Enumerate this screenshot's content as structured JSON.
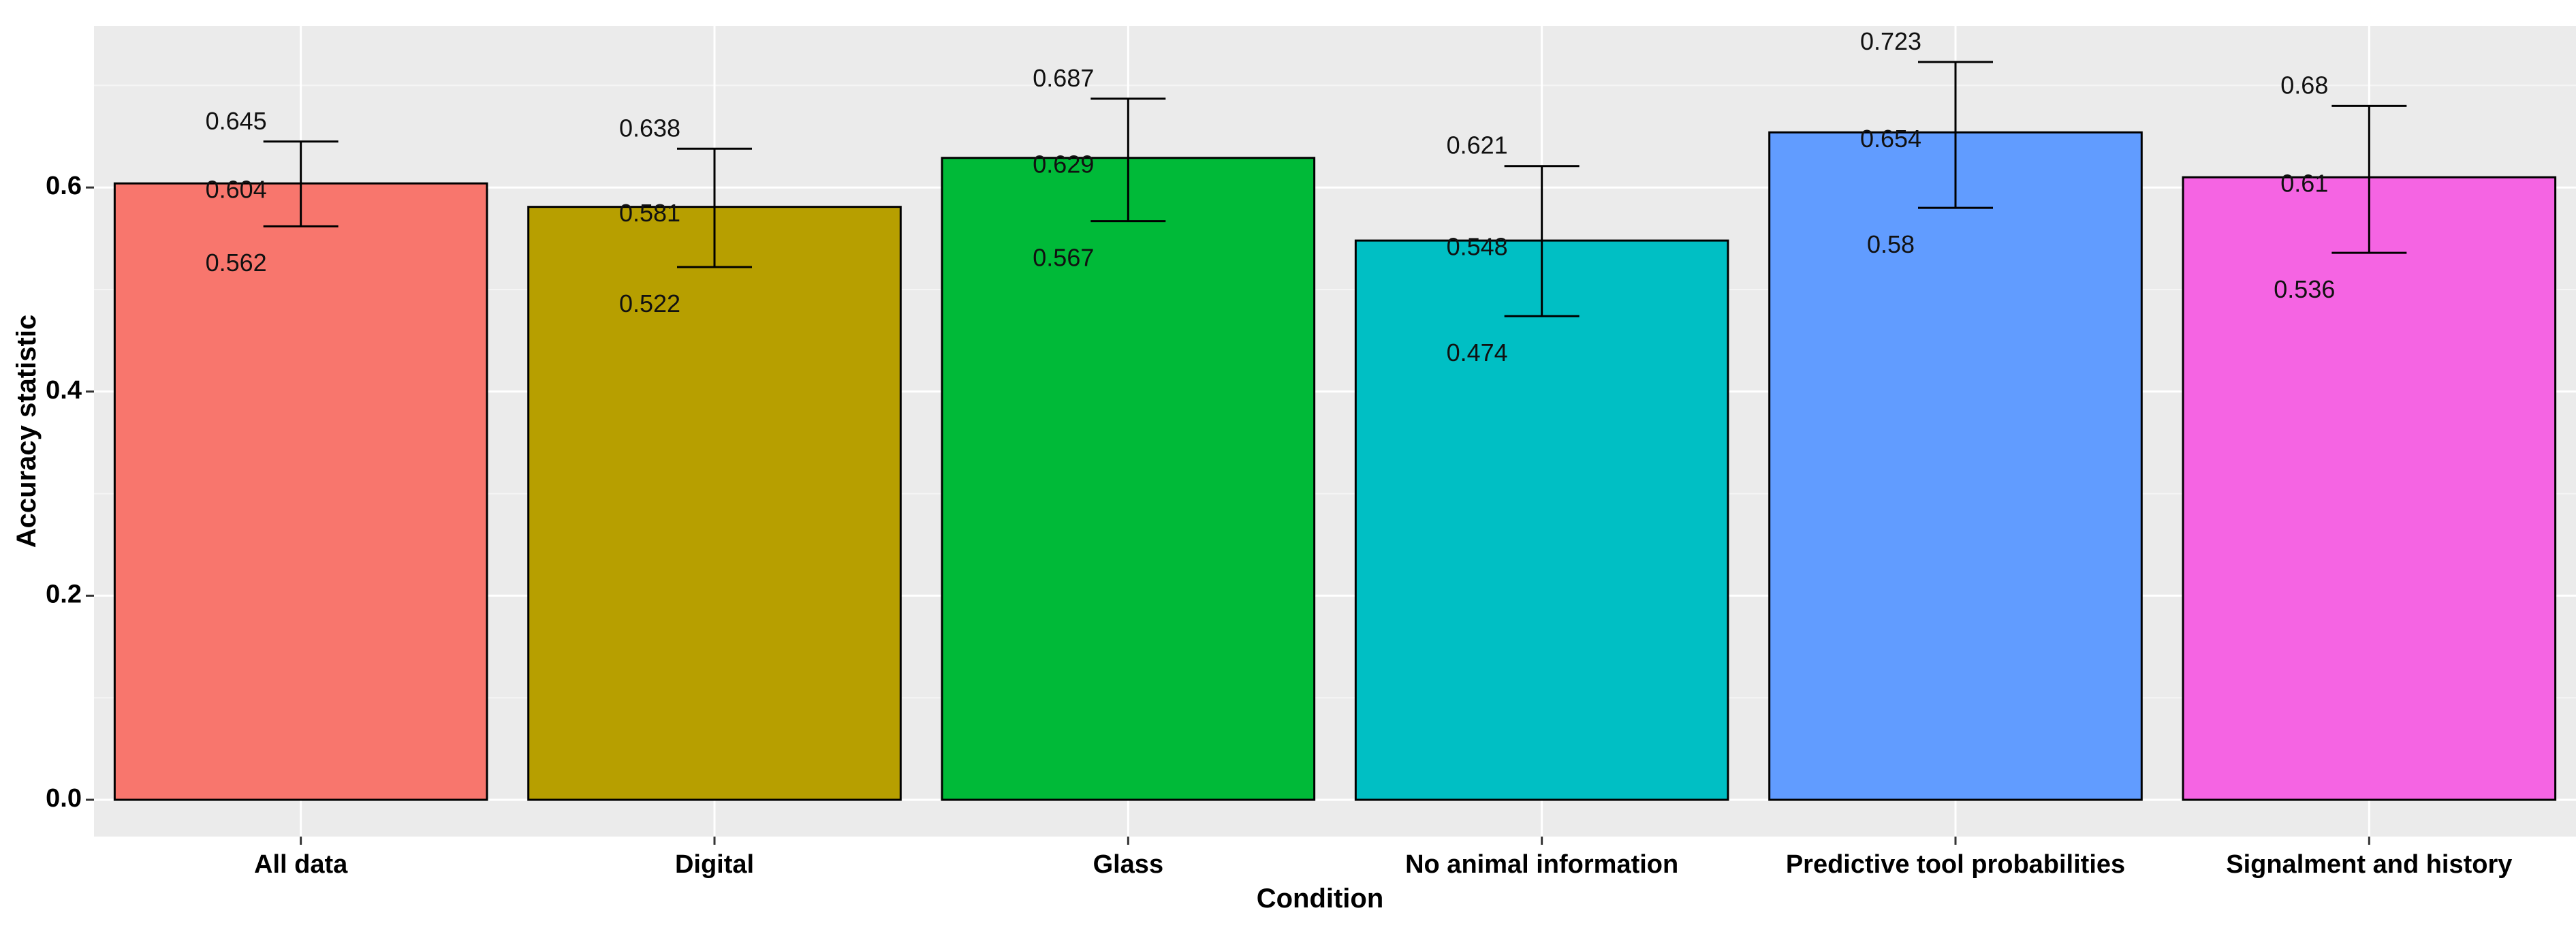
{
  "chart_data": {
    "type": "bar",
    "xlabel": "Condition",
    "ylabel": "Accuracy statistic",
    "ylim": [
      -0.06,
      0.76
    ],
    "yticks": [
      0.0,
      0.2,
      0.4,
      0.6
    ],
    "ytick_labels": [
      "0.0",
      "0.2",
      "0.4",
      "0.6"
    ],
    "grid": true,
    "categories": [
      "All data",
      "Digital",
      "Glass",
      "No animal information",
      "Predictive tool probabilities",
      "Signalment and history"
    ],
    "values": [
      0.604,
      0.581,
      0.629,
      0.548,
      0.654,
      0.61
    ],
    "lower": [
      0.562,
      0.522,
      0.567,
      0.474,
      0.58,
      0.536
    ],
    "upper": [
      0.645,
      0.638,
      0.687,
      0.621,
      0.723,
      0.68
    ],
    "value_labels": [
      "0.604",
      "0.581",
      "0.629",
      "0.548",
      "0.654",
      "0.61"
    ],
    "lower_labels": [
      "0.562",
      "0.522",
      "0.567",
      "0.474",
      "0.58",
      "0.536"
    ],
    "upper_labels": [
      "0.645",
      "0.638",
      "0.687",
      "0.621",
      "0.723",
      "0.68"
    ],
    "colors": [
      "#F8766D",
      "#B79F00",
      "#00BA38",
      "#00BFC4",
      "#619CFF",
      "#F564E3"
    ]
  }
}
